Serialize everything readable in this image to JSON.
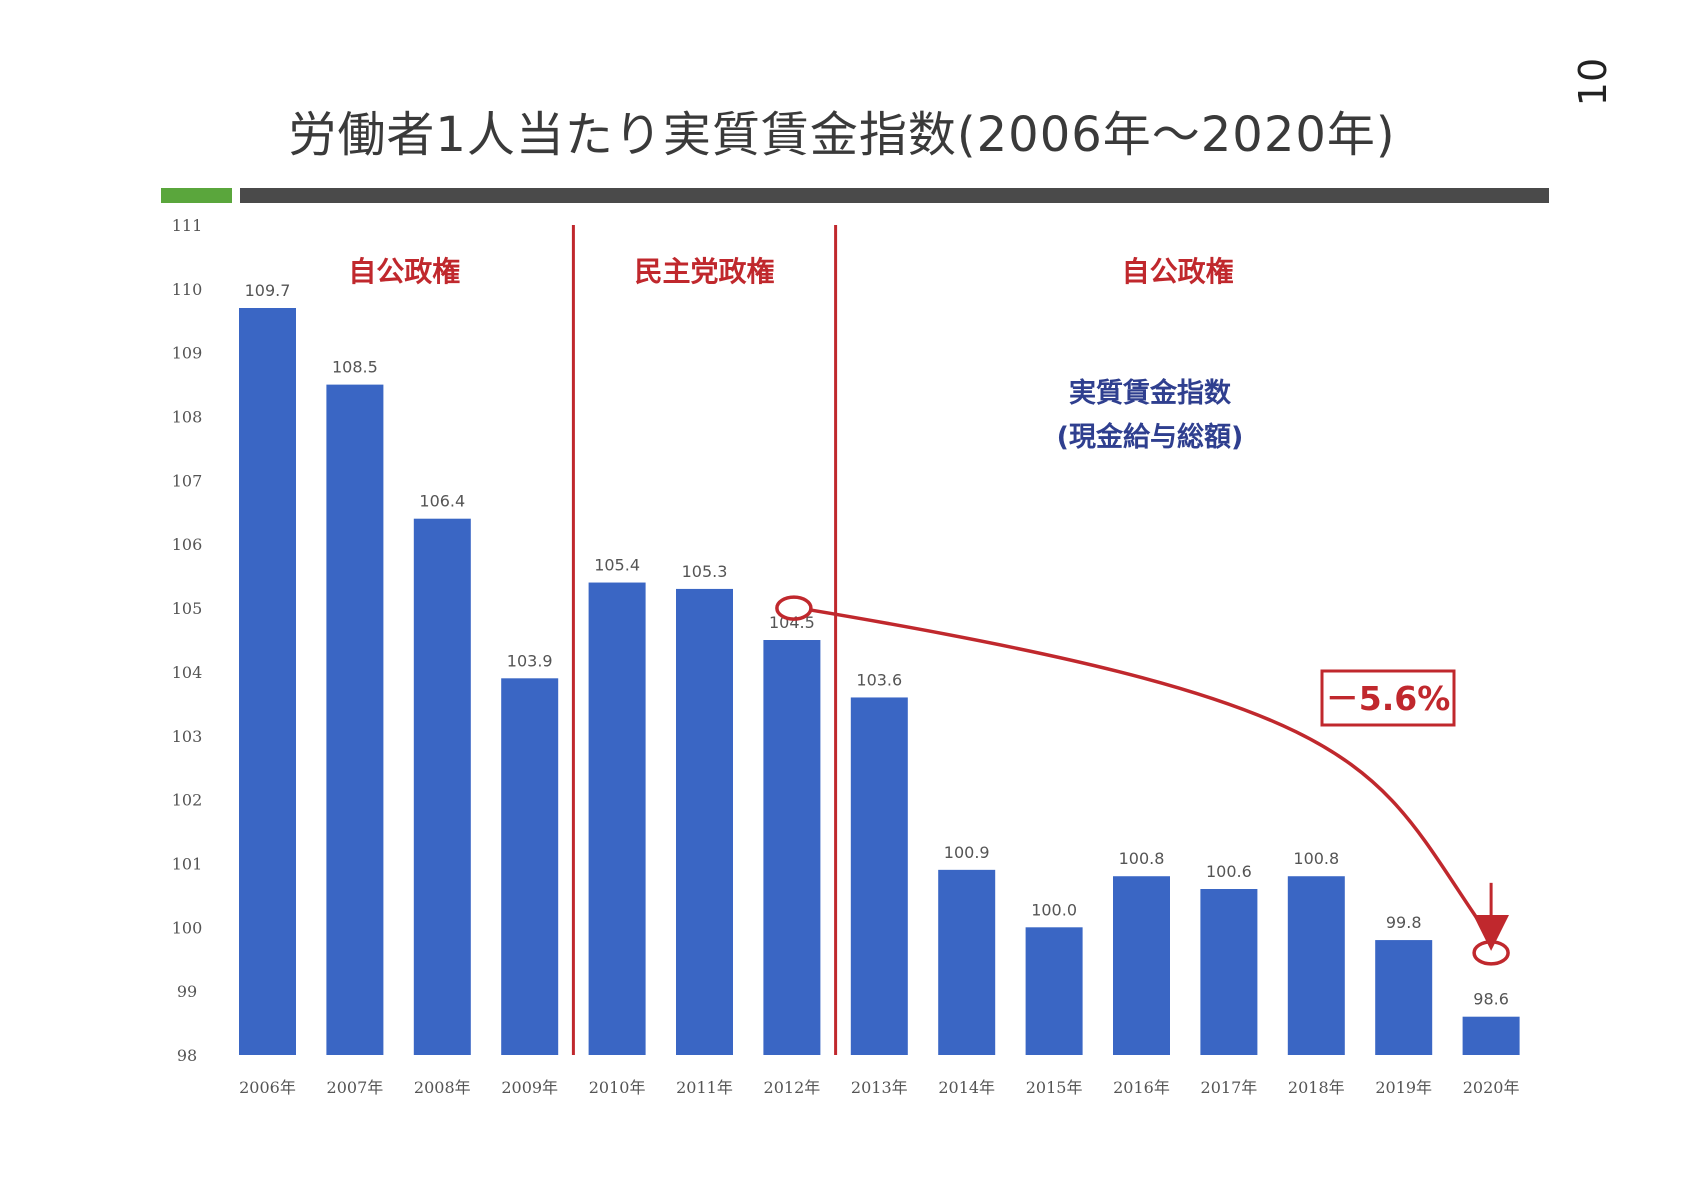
{
  "page_number": "10",
  "title": "労働者1人当たり実質賃金指数(2006年～2020年)",
  "colors": {
    "bar": "#3a66c4",
    "accent": "#c0282d",
    "legend": "#2f3f8f",
    "green": "#5aa63c",
    "rule": "#4a4a4a"
  },
  "chart_data": {
    "type": "bar",
    "categories": [
      "2006年",
      "2007年",
      "2008年",
      "2009年",
      "2010年",
      "2011年",
      "2012年",
      "2013年",
      "2014年",
      "2015年",
      "2016年",
      "2017年",
      "2018年",
      "2019年",
      "2020年"
    ],
    "values": [
      109.7,
      108.5,
      106.4,
      103.9,
      105.4,
      105.3,
      104.5,
      103.6,
      100.9,
      100.0,
      100.8,
      100.6,
      100.8,
      99.8,
      98.6
    ],
    "value_labels": [
      "109.7",
      "108.5",
      "106.4",
      "103.9",
      "105.4",
      "105.3",
      "104.5",
      "103.6",
      "100.9",
      "100.0",
      "100.8",
      "100.6",
      "100.8",
      "99.8",
      "98.6"
    ],
    "y_ticks": [
      "98",
      "99",
      "100",
      "101",
      "102",
      "103",
      "104",
      "105",
      "106",
      "107",
      "108",
      "109",
      "110",
      "111"
    ],
    "ylim": [
      98,
      111
    ],
    "series_name": "実質賃金指数\n(現金給与総額)",
    "legend_line1": "実質賃金指数",
    "legend_line2": "(現金給与総額)",
    "eras": [
      {
        "label": "自公政権",
        "from_index": 0,
        "to_index": 3
      },
      {
        "label": "民主党政権",
        "from_index": 4,
        "to_index": 6
      },
      {
        "label": "自公政権",
        "from_index": 7,
        "to_index": 14
      }
    ],
    "annotation": {
      "text": "－5.6%",
      "from_index": 6,
      "to_index": 14
    }
  }
}
